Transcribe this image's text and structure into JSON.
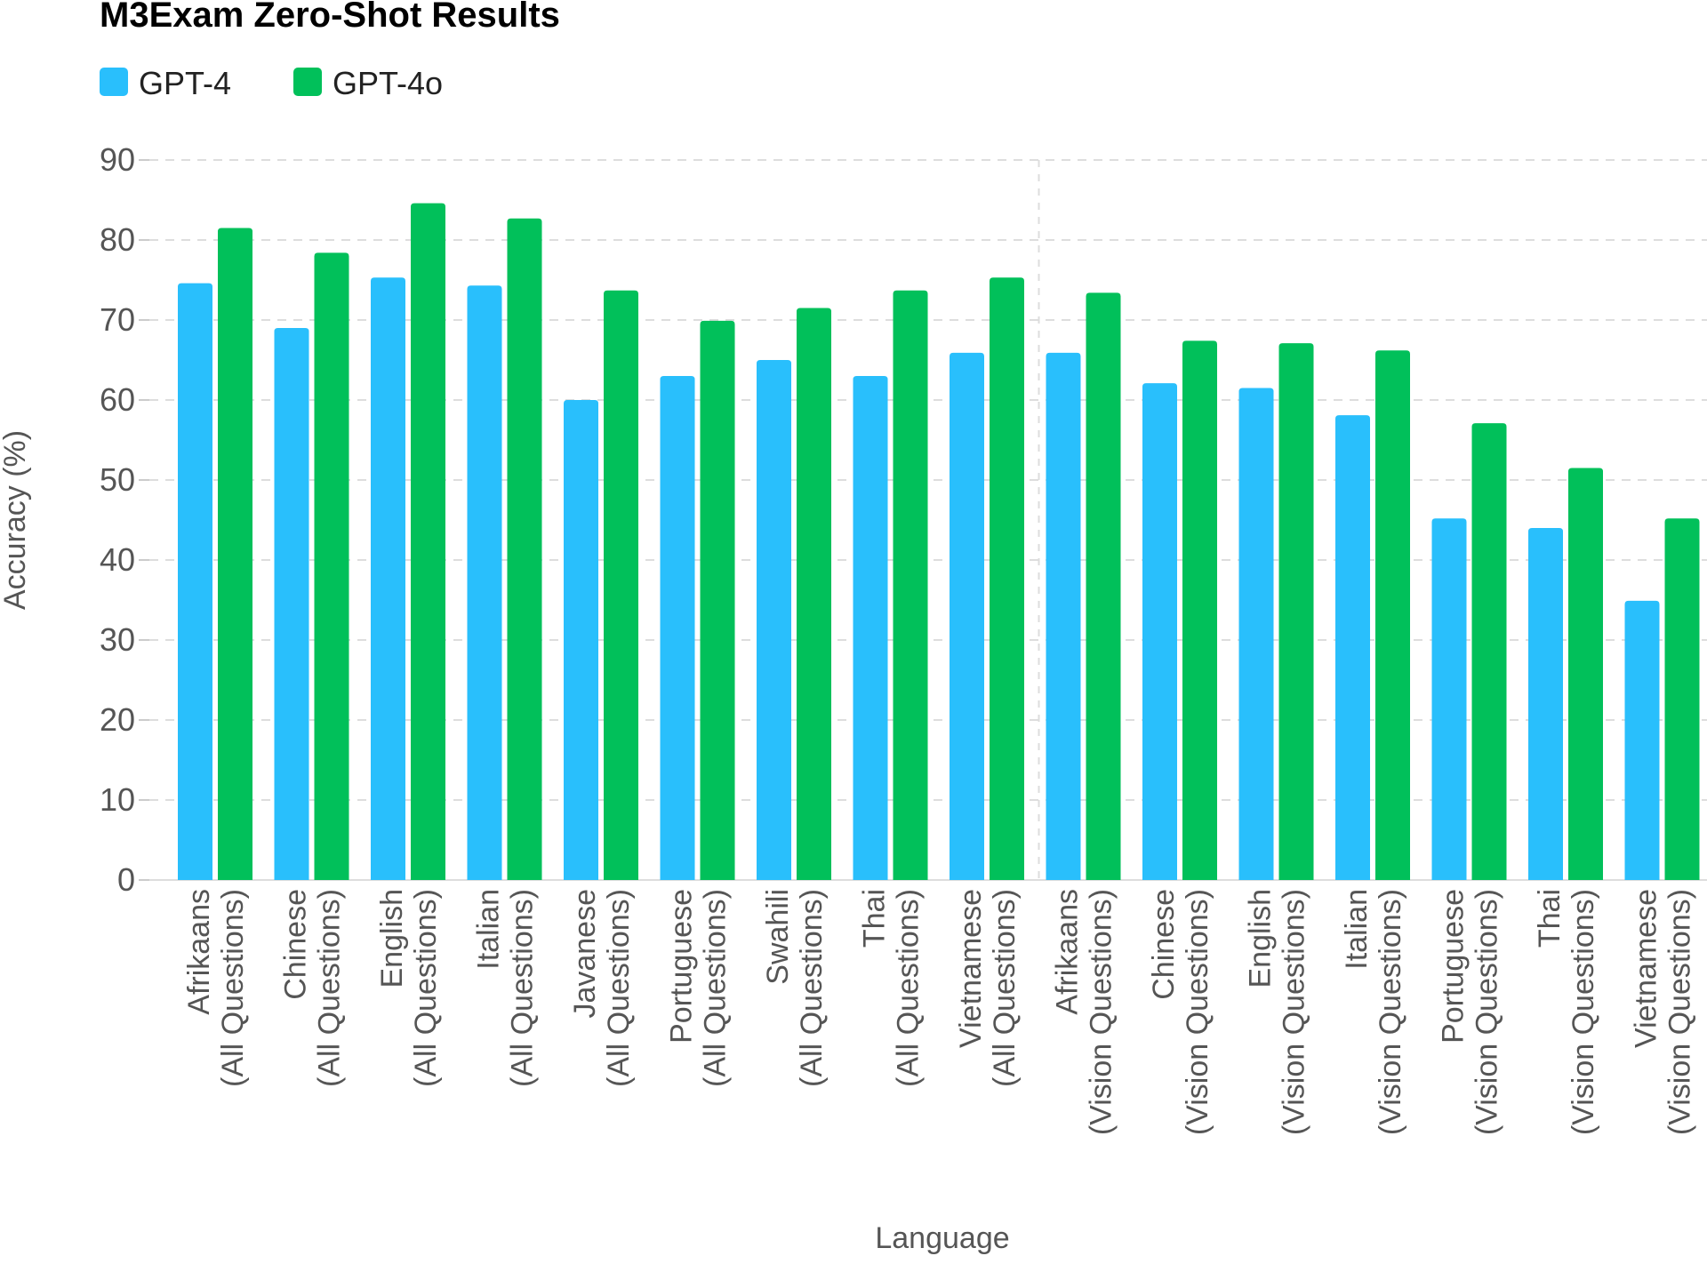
{
  "chart_data": {
    "type": "bar",
    "title": "M3Exam Zero-Shot Results",
    "xlabel": "Language",
    "ylabel": "Accuracy (%)",
    "ylim": [
      0,
      90
    ],
    "yticks": [
      0,
      10,
      20,
      30,
      40,
      50,
      60,
      70,
      80,
      90
    ],
    "grid": true,
    "legend_position": "top-left",
    "categories": [
      [
        "Afrikaans",
        "(All Questions)"
      ],
      [
        "Chinese",
        "(All Questions)"
      ],
      [
        "English",
        "(All Questions)"
      ],
      [
        "Italian",
        "(All Questions)"
      ],
      [
        "Javanese",
        "(All Questions)"
      ],
      [
        "Portuguese",
        "(All Questions)"
      ],
      [
        "Swahili",
        "(All Questions)"
      ],
      [
        "Thai",
        "(All Questions)"
      ],
      [
        "Vietnamese",
        "(All Questions)"
      ],
      [
        "Afrikaans",
        "(Vision Questions)"
      ],
      [
        "Chinese",
        "(Vision Questions)"
      ],
      [
        "English",
        "(Vision Questions)"
      ],
      [
        "Italian",
        "(Vision Questions)"
      ],
      [
        "Portuguese",
        "(Vision Questions)"
      ],
      [
        "Thai",
        "(Vision Questions)"
      ],
      [
        "Vietnamese",
        "(Vision Questions)"
      ]
    ],
    "series": [
      {
        "name": "GPT-4",
        "color": "#29bffc",
        "values": [
          74.6,
          69.0,
          75.3,
          74.3,
          60.0,
          63.0,
          65.0,
          63.0,
          65.9,
          65.9,
          62.1,
          61.5,
          58.1,
          45.2,
          44.0,
          34.9
        ]
      },
      {
        "name": "GPT-4o",
        "color": "#01c05a",
        "values": [
          81.5,
          78.4,
          84.6,
          82.7,
          73.7,
          69.9,
          71.5,
          73.7,
          75.3,
          73.4,
          67.4,
          67.1,
          66.2,
          57.1,
          51.5,
          45.2
        ]
      }
    ],
    "group_divider_after_index": 8
  }
}
